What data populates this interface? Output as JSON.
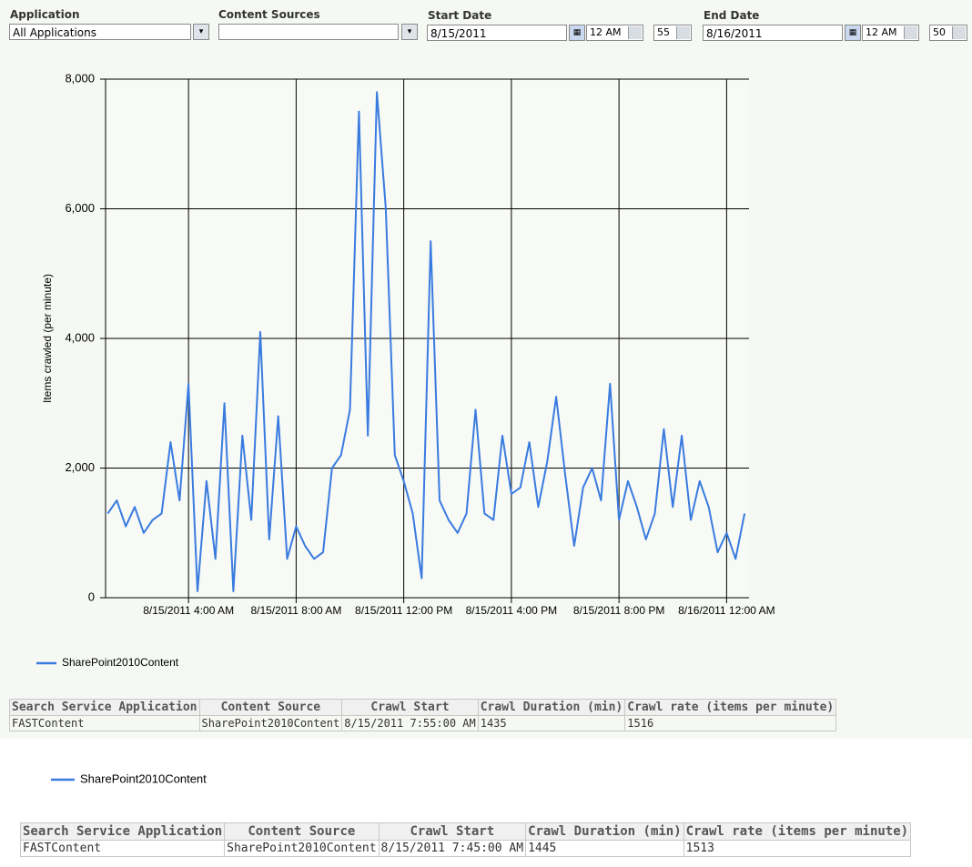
{
  "filters": {
    "application": {
      "label": "Application",
      "value": "All Applications"
    },
    "content_sources": {
      "label": "Content Sources"
    },
    "start_date": {
      "label": "Start Date",
      "date": "8/15/2011",
      "hour": "12 AM",
      "minute": "55"
    },
    "end_date": {
      "label": "End Date",
      "date": "8/16/2011",
      "hour": "12 AM",
      "minute": "50"
    }
  },
  "chart_data": {
    "type": "line",
    "y_label": "Items crawled (per minute)",
    "x": [
      "2011-08-15T01:00",
      "2011-08-15T01:20",
      "2011-08-15T01:40",
      "2011-08-15T02:00",
      "2011-08-15T02:20",
      "2011-08-15T02:40",
      "2011-08-15T03:00",
      "2011-08-15T03:20",
      "2011-08-15T03:40",
      "2011-08-15T04:00",
      "2011-08-15T04:20",
      "2011-08-15T04:40",
      "2011-08-15T05:00",
      "2011-08-15T05:20",
      "2011-08-15T05:40",
      "2011-08-15T06:00",
      "2011-08-15T06:20",
      "2011-08-15T06:40",
      "2011-08-15T07:00",
      "2011-08-15T07:20",
      "2011-08-15T07:40",
      "2011-08-15T08:00",
      "2011-08-15T08:20",
      "2011-08-15T08:40",
      "2011-08-15T09:00",
      "2011-08-15T09:20",
      "2011-08-15T09:40",
      "2011-08-15T10:00",
      "2011-08-15T10:20",
      "2011-08-15T10:40",
      "2011-08-15T11:00",
      "2011-08-15T11:20",
      "2011-08-15T11:40",
      "2011-08-15T12:00",
      "2011-08-15T12:20",
      "2011-08-15T12:40",
      "2011-08-15T13:00",
      "2011-08-15T13:20",
      "2011-08-15T13:40",
      "2011-08-15T14:00",
      "2011-08-15T14:20",
      "2011-08-15T14:40",
      "2011-08-15T15:00",
      "2011-08-15T15:20",
      "2011-08-15T15:40",
      "2011-08-15T16:00",
      "2011-08-15T16:20",
      "2011-08-15T16:40",
      "2011-08-15T17:00",
      "2011-08-15T17:20",
      "2011-08-15T17:40",
      "2011-08-15T18:00",
      "2011-08-15T18:20",
      "2011-08-15T18:40",
      "2011-08-15T19:00",
      "2011-08-15T19:20",
      "2011-08-15T19:40",
      "2011-08-15T20:00",
      "2011-08-15T20:20",
      "2011-08-15T20:40",
      "2011-08-15T21:00",
      "2011-08-15T21:20",
      "2011-08-15T21:40",
      "2011-08-15T22:00",
      "2011-08-15T22:20",
      "2011-08-15T22:40",
      "2011-08-15T23:00",
      "2011-08-15T23:20",
      "2011-08-15T23:40",
      "2011-08-16T00:00",
      "2011-08-16T00:20",
      "2011-08-16T00:40"
    ],
    "series": [
      {
        "name": "SharePoint2010Content",
        "color": "#3a7be0",
        "values": [
          1300,
          1500,
          1100,
          1400,
          1000,
          1200,
          1300,
          2400,
          1500,
          3300,
          100,
          1800,
          600,
          3000,
          100,
          2500,
          1200,
          4100,
          900,
          2800,
          600,
          1100,
          800,
          600,
          700,
          2000,
          2200,
          2900,
          7500,
          2500,
          7800,
          6000,
          2200,
          1800,
          1300,
          300,
          5500,
          1500,
          1200,
          1000,
          1300,
          2900,
          1300,
          1200,
          2500,
          1600,
          1700,
          2400,
          1400,
          2100,
          3100,
          1900,
          800,
          1700,
          2000,
          1500,
          3300,
          1200,
          1800,
          1400,
          900,
          1300,
          2600,
          1400,
          2500,
          1200,
          1800,
          1400,
          700,
          1000,
          600,
          1300
        ]
      }
    ],
    "xlim": [
      "2011-08-15T00:55",
      "2011-08-16T00:50"
    ],
    "xticks": [
      {
        "value": "2011-08-15T04:00",
        "label": "8/15/2011 4:00 AM"
      },
      {
        "value": "2011-08-15T08:00",
        "label": "8/15/2011 8:00 AM"
      },
      {
        "value": "2011-08-15T12:00",
        "label": "8/15/2011 12:00 PM"
      },
      {
        "value": "2011-08-15T16:00",
        "label": "8/15/2011 4:00 PM"
      },
      {
        "value": "2011-08-15T20:00",
        "label": "8/15/2011 8:00 PM"
      },
      {
        "value": "2011-08-16T00:00",
        "label": "8/16/2011 12:00 AM"
      }
    ],
    "ylim": [
      0,
      8000
    ],
    "yticks": [
      0,
      {
        "value": 2000,
        "label": "2,000"
      },
      {
        "value": 4000,
        "label": "4,000"
      },
      {
        "value": 6000,
        "label": "6,000"
      },
      {
        "value": 8000,
        "label": "8,000"
      }
    ],
    "grid": true
  },
  "table1": {
    "header": [
      "Search Service Application",
      "Content Source",
      "Crawl Start",
      "Crawl Duration (min)",
      "Crawl rate (items per minute)"
    ],
    "rows": [
      [
        "FASTContent",
        "SharePoint2010Content",
        "8/15/2011 7:55:00 AM",
        "1435",
        "1516"
      ]
    ]
  },
  "legend2": "SharePoint2010Content",
  "table2": {
    "header": [
      "Search Service Application",
      "Content Source",
      "Crawl Start",
      "Crawl Duration (min)",
      "Crawl rate (items per minute)"
    ],
    "rows": [
      [
        "FASTContent",
        "SharePoint2010Content",
        "8/15/2011 7:45:00 AM",
        "1445",
        "1513"
      ]
    ]
  }
}
